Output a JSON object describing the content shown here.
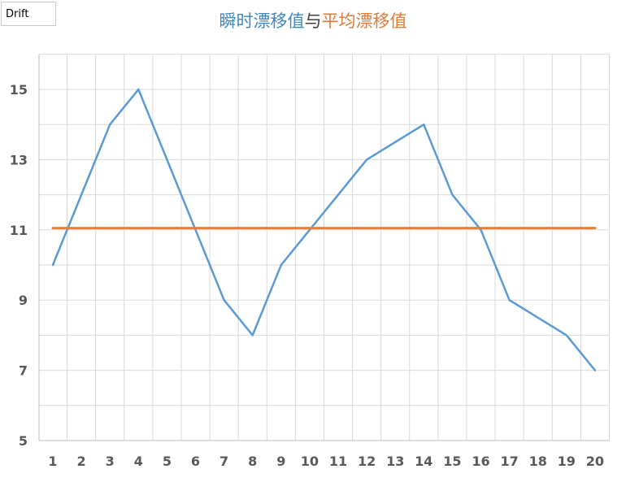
{
  "tag": {
    "text": "Drift"
  },
  "chart_data": {
    "type": "line",
    "title_parts": [
      {
        "text": "瞬时漂移值",
        "color": "#3f87c0"
      },
      {
        "text": "与",
        "color": "#404040"
      },
      {
        "text": "平均漂移值",
        "color": "#e07b39"
      }
    ],
    "categories": [
      "1",
      "2",
      "3",
      "4",
      "5",
      "6",
      "7",
      "8",
      "9",
      "10",
      "11",
      "12",
      "13",
      "14",
      "15",
      "16",
      "17",
      "18",
      "19",
      "20"
    ],
    "yticks": [
      5,
      7,
      9,
      11,
      13,
      15
    ],
    "ylim": [
      5,
      16
    ],
    "grid": true,
    "series": [
      {
        "color": "#5b9bd5",
        "values": [
          10,
          12,
          14,
          15,
          13,
          11,
          9,
          8,
          10,
          11,
          12,
          13,
          13.5,
          14,
          12,
          11,
          9,
          8.5,
          8,
          7
        ]
      },
      {
        "color": "#ed7d31",
        "values": [
          11.05,
          11.05,
          11.05,
          11.05,
          11.05,
          11.05,
          11.05,
          11.05,
          11.05,
          11.05,
          11.05,
          11.05,
          11.05,
          11.05,
          11.05,
          11.05,
          11.05,
          11.05,
          11.05,
          11.05
        ]
      }
    ]
  }
}
